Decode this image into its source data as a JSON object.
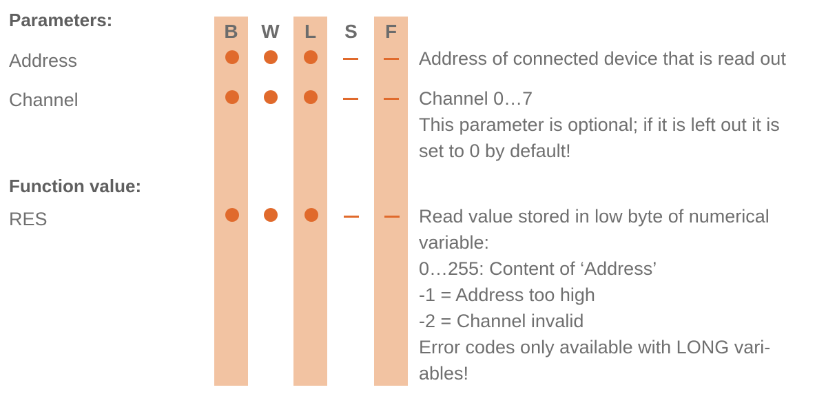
{
  "columns": [
    {
      "key": "B",
      "label": "B"
    },
    {
      "key": "W",
      "label": "W"
    },
    {
      "key": "L",
      "label": "L"
    },
    {
      "key": "S",
      "label": "S"
    },
    {
      "key": "F",
      "label": "F"
    }
  ],
  "parameters": {
    "title": "Parameters:",
    "rows": [
      {
        "name": "Address",
        "support": [
          "dot",
          "dot",
          "dot",
          "dash",
          "dash"
        ],
        "description": [
          "Address of connected device that is read out"
        ]
      },
      {
        "name": "Channel",
        "support": [
          "dot",
          "dot",
          "dot",
          "dash",
          "dash"
        ],
        "description": [
          "Channel 0…7",
          "This parameter is optional; if it is left out it is",
          "set to 0 by default!"
        ]
      }
    ]
  },
  "function_value": {
    "title": "Function value:",
    "rows": [
      {
        "name": "RES",
        "support": [
          "dot",
          "dot",
          "dot",
          "dash",
          "dash"
        ],
        "description": [
          "Read value stored in low byte of numerical",
          "variable:",
          "0…255: Content of ‘Address’",
          "-1 = Address too high",
          "-2 = Channel invalid",
          "Error codes only available with LONG vari-",
          "ables!"
        ]
      }
    ]
  },
  "colors": {
    "band": "#f2c3a2",
    "marker": "#e06a2c",
    "text": "#6f6f6f"
  }
}
